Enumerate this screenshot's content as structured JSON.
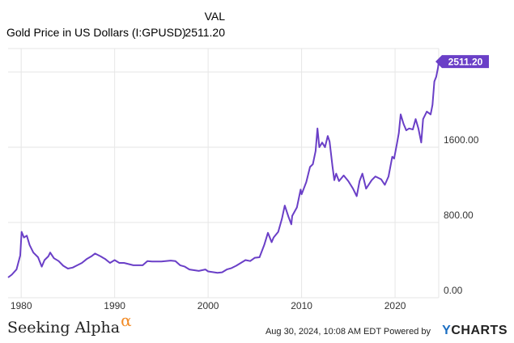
{
  "legend": {
    "header": "VAL",
    "series_name": "Gold Price in US Dollars (I:GPUSD)",
    "series_value": "2511.20"
  },
  "footer": {
    "brand": "Seeking Alpha",
    "brand_symbol": "α",
    "note": "Aug 30, 2024, 10:08 AM EDT Powered by",
    "ycharts_y": "Y",
    "ycharts_rest": "CHARTS"
  },
  "colors": {
    "line": "#6a3fc7",
    "grid": "#e6e6e6",
    "callout_bg": "#6a3fc7",
    "alpha": "#f28c28"
  },
  "chart_data": {
    "type": "line",
    "title": "",
    "xlabel": "",
    "ylabel": "",
    "x_ticks": [
      "1980",
      "1990",
      "2000",
      "2010",
      "2020"
    ],
    "x_tick_values": [
      1980,
      1990,
      2000,
      2010,
      2020
    ],
    "y_ticks": [
      "0.00",
      "800.00",
      "1600.00"
    ],
    "y_tick_values": [
      0,
      800,
      1600
    ],
    "xlim": [
      1978.6,
      2024.67
    ],
    "ylim": [
      0,
      2650
    ],
    "y_axis_side": "right",
    "grid": true,
    "last_value_label": "2511.20",
    "series": [
      {
        "name": "Gold Price in US Dollars (I:GPUSD)",
        "x": [
          1978.6,
          1979.0,
          1979.5,
          1979.9,
          1980.05,
          1980.3,
          1980.6,
          1980.9,
          1981.3,
          1981.8,
          1982.2,
          1982.5,
          1982.9,
          1983.1,
          1983.5,
          1984.0,
          1984.5,
          1985.0,
          1985.5,
          1986.0,
          1986.5,
          1987.0,
          1987.5,
          1987.9,
          1988.5,
          1989.0,
          1989.5,
          1990.0,
          1990.5,
          1991.0,
          1992.0,
          1993.0,
          1993.5,
          1994.0,
          1995.0,
          1996.0,
          1996.5,
          1997.0,
          1997.5,
          1998.0,
          1999.0,
          1999.7,
          2000.0,
          2001.0,
          2001.5,
          2002.0,
          2002.5,
          2003.0,
          2004.0,
          2004.5,
          2005.0,
          2005.5,
          2006.0,
          2006.4,
          2006.8,
          2007.0,
          2007.5,
          2007.9,
          2008.2,
          2008.6,
          2008.9,
          2009.0,
          2009.5,
          2009.9,
          2010.0,
          2010.5,
          2010.9,
          2011.2,
          2011.5,
          2011.7,
          2011.9,
          2012.2,
          2012.5,
          2012.8,
          2013.0,
          2013.3,
          2013.5,
          2013.7,
          2014.0,
          2014.5,
          2015.0,
          2015.5,
          2015.9,
          2016.2,
          2016.5,
          2016.9,
          2017.5,
          2017.9,
          2018.5,
          2018.9,
          2019.3,
          2019.7,
          2019.9,
          2020.2,
          2020.4,
          2020.6,
          2020.9,
          2021.2,
          2021.5,
          2021.9,
          2022.2,
          2022.5,
          2022.8,
          2023.0,
          2023.4,
          2023.8,
          2024.0,
          2024.2,
          2024.4,
          2024.6,
          2024.67
        ],
        "values": [
          215,
          245,
          300,
          450,
          700,
          640,
          660,
          560,
          480,
          430,
          330,
          400,
          440,
          480,
          420,
          390,
          340,
          310,
          320,
          345,
          370,
          410,
          440,
          470,
          440,
          410,
          370,
          400,
          370,
          370,
          345,
          345,
          390,
          385,
          385,
          395,
          390,
          345,
          330,
          300,
          285,
          300,
          280,
          265,
          270,
          300,
          315,
          340,
          400,
          390,
          425,
          430,
          560,
          690,
          590,
          640,
          700,
          840,
          980,
          860,
          780,
          870,
          960,
          1150,
          1100,
          1230,
          1390,
          1420,
          1560,
          1800,
          1600,
          1650,
          1600,
          1720,
          1660,
          1400,
          1250,
          1320,
          1240,
          1300,
          1240,
          1160,
          1080,
          1240,
          1320,
          1160,
          1250,
          1290,
          1260,
          1200,
          1290,
          1500,
          1480,
          1640,
          1750,
          1950,
          1850,
          1780,
          1800,
          1790,
          1900,
          1800,
          1650,
          1900,
          1980,
          1950,
          2050,
          2300,
          2350,
          2450,
          2511.2
        ]
      }
    ]
  }
}
